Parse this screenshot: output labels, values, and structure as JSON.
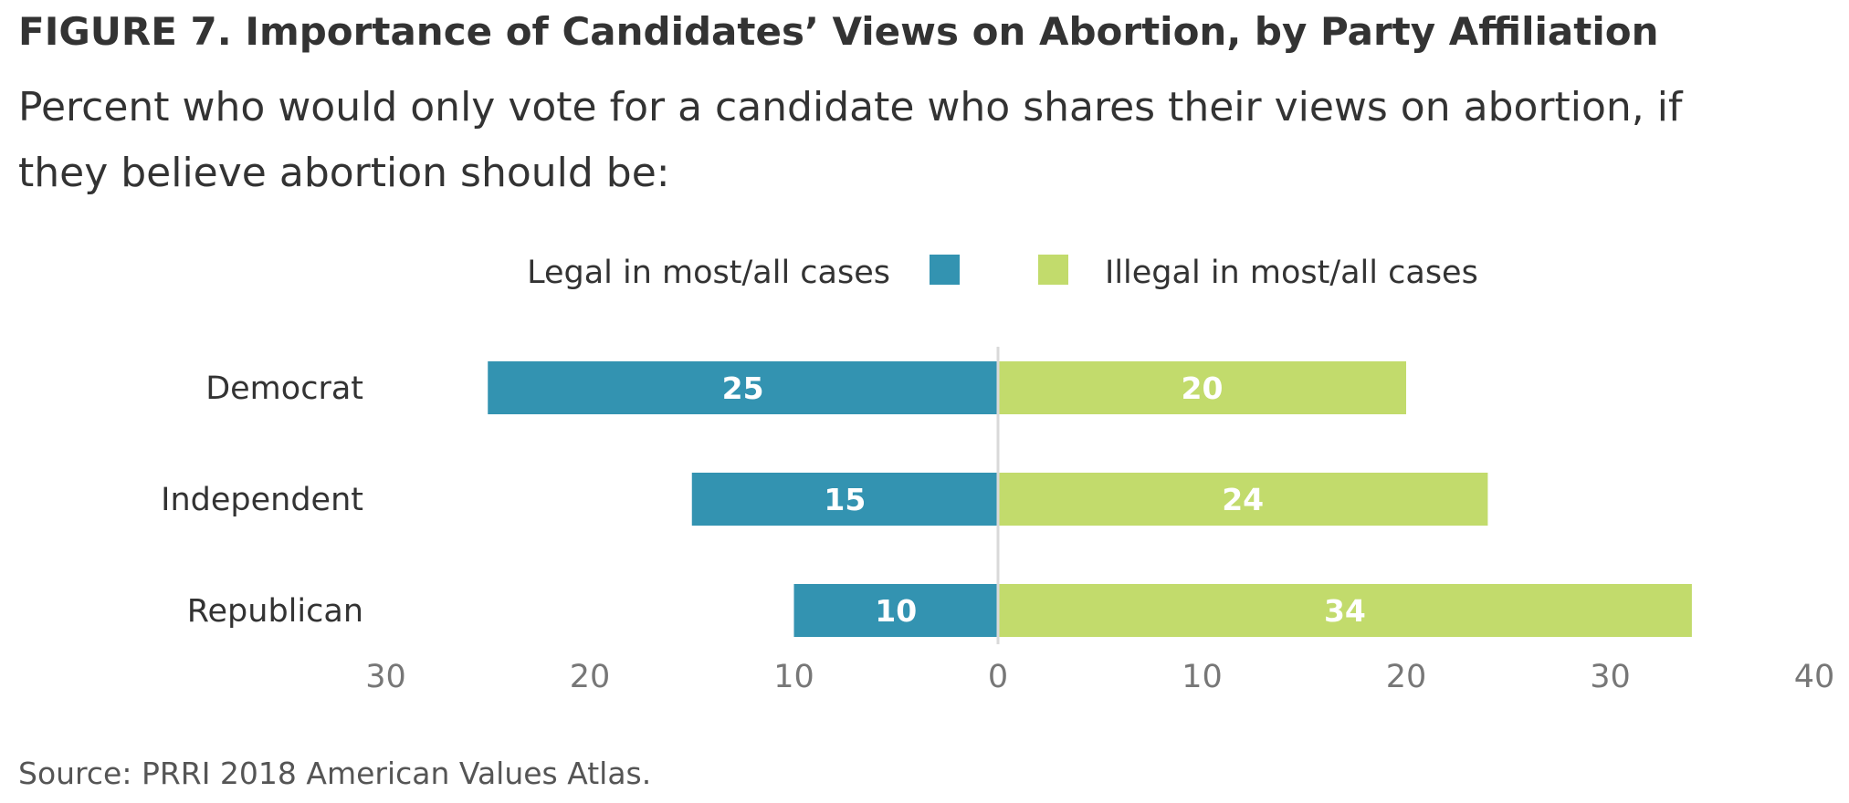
{
  "header": {
    "title": "FIGURE 7.  Importance of Candidates’ Views on Abortion, by Party Affiliation",
    "subtitle": "Percent who would only vote for a candidate who shares their views on abortion, if they believe abortion should be:"
  },
  "footer": {
    "source": "Source: PRRI 2018 American Values Atlas."
  },
  "chart_data": {
    "type": "bar",
    "orientation": "horizontal-diverging",
    "categories": [
      "Democrat",
      "Independent",
      "Republican"
    ],
    "series": [
      {
        "name": "Legal in most/all cases",
        "values": [
          25,
          15,
          10
        ],
        "direction": "left",
        "color": "#3393b1"
      },
      {
        "name": "Illegal in most/all cases",
        "values": [
          20,
          24,
          34
        ],
        "direction": "right",
        "color": "#c2db6c"
      }
    ],
    "xlim": [
      -30,
      40
    ],
    "ticks": [
      {
        "value": -30,
        "label": "30"
      },
      {
        "value": -20,
        "label": "20"
      },
      {
        "value": -10,
        "label": "10"
      },
      {
        "value": 0,
        "label": "0"
      },
      {
        "value": 10,
        "label": "10"
      },
      {
        "value": 20,
        "label": "20"
      },
      {
        "value": 30,
        "label": "30"
      },
      {
        "value": 40,
        "label": "40"
      }
    ],
    "legend_position": "top",
    "grid": false,
    "zero_line_color": "#d9d9d9"
  }
}
